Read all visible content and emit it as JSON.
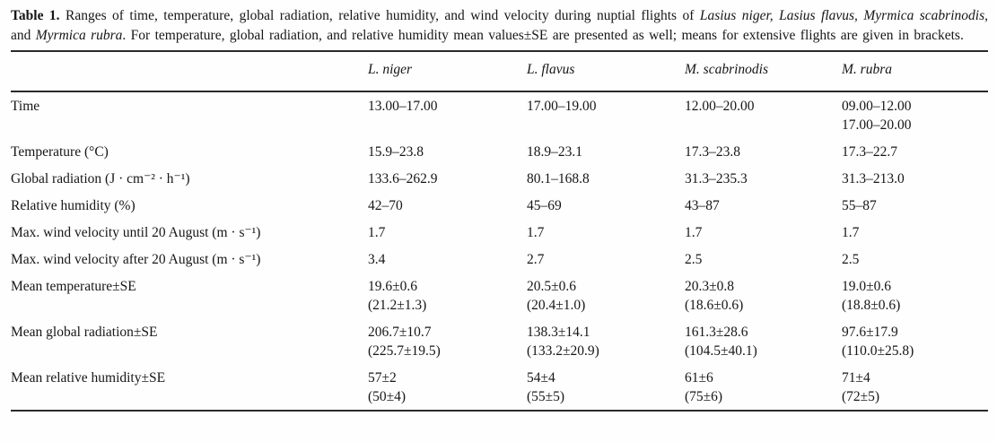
{
  "caption": {
    "label": "Table 1.",
    "text1": " Ranges of time, temperature, global radiation, relative humidity, and wind velocity during nuptial flights of ",
    "species_group": "Lasius niger, Lasius flavus, Myrmica scabrinodis,",
    "text2": " and ",
    "species_last": "Myrmica rubra",
    "text3": ". For temperature, global radiation, and relative humidity mean values±SE are presented as well; means for extensive flights are given in brackets."
  },
  "table": {
    "columns": [
      "",
      "L. niger",
      "L. flavus",
      "M. scabrinodis",
      "M. rubra"
    ],
    "rows": [
      {
        "label": "Time",
        "values": [
          [
            "13.00–17.00"
          ],
          [
            "17.00–19.00"
          ],
          [
            "12.00–20.00"
          ],
          [
            "09.00–12.00",
            "17.00–20.00"
          ]
        ]
      },
      {
        "label": "Temperature (°C)",
        "values": [
          [
            "15.9–23.8"
          ],
          [
            "18.9–23.1"
          ],
          [
            "17.3–23.8"
          ],
          [
            "17.3–22.7"
          ]
        ]
      },
      {
        "label": "Global radiation (J · cm⁻² · h⁻¹)",
        "values": [
          [
            "133.6–262.9"
          ],
          [
            "80.1–168.8"
          ],
          [
            "31.3–235.3"
          ],
          [
            "31.3–213.0"
          ]
        ]
      },
      {
        "label": "Relative humidity (%)",
        "values": [
          [
            "42–70"
          ],
          [
            "45–69"
          ],
          [
            "43–87"
          ],
          [
            "55–87"
          ]
        ]
      },
      {
        "label": "Max. wind velocity until 20 August (m · s⁻¹)",
        "values": [
          [
            "1.7"
          ],
          [
            "1.7"
          ],
          [
            "1.7"
          ],
          [
            "1.7"
          ]
        ]
      },
      {
        "label": "Max. wind velocity after 20 August (m · s⁻¹)",
        "values": [
          [
            "3.4"
          ],
          [
            "2.7"
          ],
          [
            "2.5"
          ],
          [
            "2.5"
          ]
        ]
      },
      {
        "label": "Mean temperature±SE",
        "values": [
          [
            "19.6±0.6",
            "(21.2±1.3)"
          ],
          [
            "20.5±0.6",
            "(20.4±1.0)"
          ],
          [
            "20.3±0.8",
            "(18.6±0.6)"
          ],
          [
            "19.0±0.6",
            "(18.8±0.6)"
          ]
        ]
      },
      {
        "label": "Mean global radiation±SE",
        "values": [
          [
            "206.7±10.7",
            "(225.7±19.5)"
          ],
          [
            "138.3±14.1",
            "(133.2±20.9)"
          ],
          [
            "161.3±28.6",
            "(104.5±40.1)"
          ],
          [
            "97.6±17.9",
            "(110.0±25.8)"
          ]
        ]
      },
      {
        "label": "Mean relative humidity±SE",
        "values": [
          [
            "57±2",
            "(50±4)"
          ],
          [
            "54±4",
            "(55±5)"
          ],
          [
            "61±6",
            "(75±6)"
          ],
          [
            "71±4",
            "(72±5)"
          ]
        ]
      }
    ]
  }
}
